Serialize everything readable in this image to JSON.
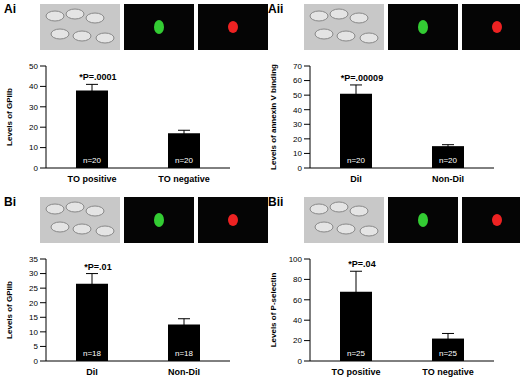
{
  "chart_data": [
    {
      "type": "bar",
      "title": "Ai",
      "categories": [
        "TO positive",
        "TO negative"
      ],
      "values": [
        38,
        17
      ],
      "errors": [
        3,
        1.5
      ],
      "color": "#000000",
      "ylabel": "Levels of GPIIb",
      "ylim": [
        0,
        50
      ],
      "yticks": [
        0,
        10,
        20,
        30,
        40,
        50
      ],
      "annotation": "*P=.0001",
      "bar_labels": [
        "n=20",
        "n=20"
      ]
    },
    {
      "type": "bar",
      "title": "Aii",
      "categories": [
        "DiI",
        "Non-DiI"
      ],
      "values": [
        51,
        15
      ],
      "errors": [
        6,
        1
      ],
      "color": "#000000",
      "ylabel": "Levels of annexin V binding",
      "ylim": [
        0,
        70
      ],
      "yticks": [
        0,
        10,
        20,
        30,
        40,
        50,
        60,
        70
      ],
      "annotation": "*P=.00009",
      "bar_labels": [
        "n=20",
        "n=20"
      ]
    },
    {
      "type": "bar",
      "title": "Bi",
      "categories": [
        "DiI",
        "Non-DiI"
      ],
      "values": [
        26.5,
        12.5
      ],
      "errors": [
        3.5,
        2
      ],
      "color": "#000000",
      "ylabel": "Levels of GPIIb",
      "ylim": [
        0,
        35
      ],
      "yticks": [
        0,
        5,
        10,
        15,
        20,
        25,
        30,
        35
      ],
      "annotation": "*P=.01",
      "bar_labels": [
        "n=18",
        "n=18"
      ]
    },
    {
      "type": "bar",
      "title": "Bii",
      "categories": [
        "TO positive",
        "TO negative"
      ],
      "values": [
        68,
        22
      ],
      "errors": [
        20,
        5
      ],
      "color": "#000000",
      "ylabel": "Levels of P-selectin",
      "ylim": [
        0,
        100
      ],
      "yticks": [
        0,
        20,
        40,
        60,
        80,
        100
      ],
      "annotation": "*P=.04",
      "bar_labels": [
        "n=25",
        "n=25"
      ]
    }
  ]
}
